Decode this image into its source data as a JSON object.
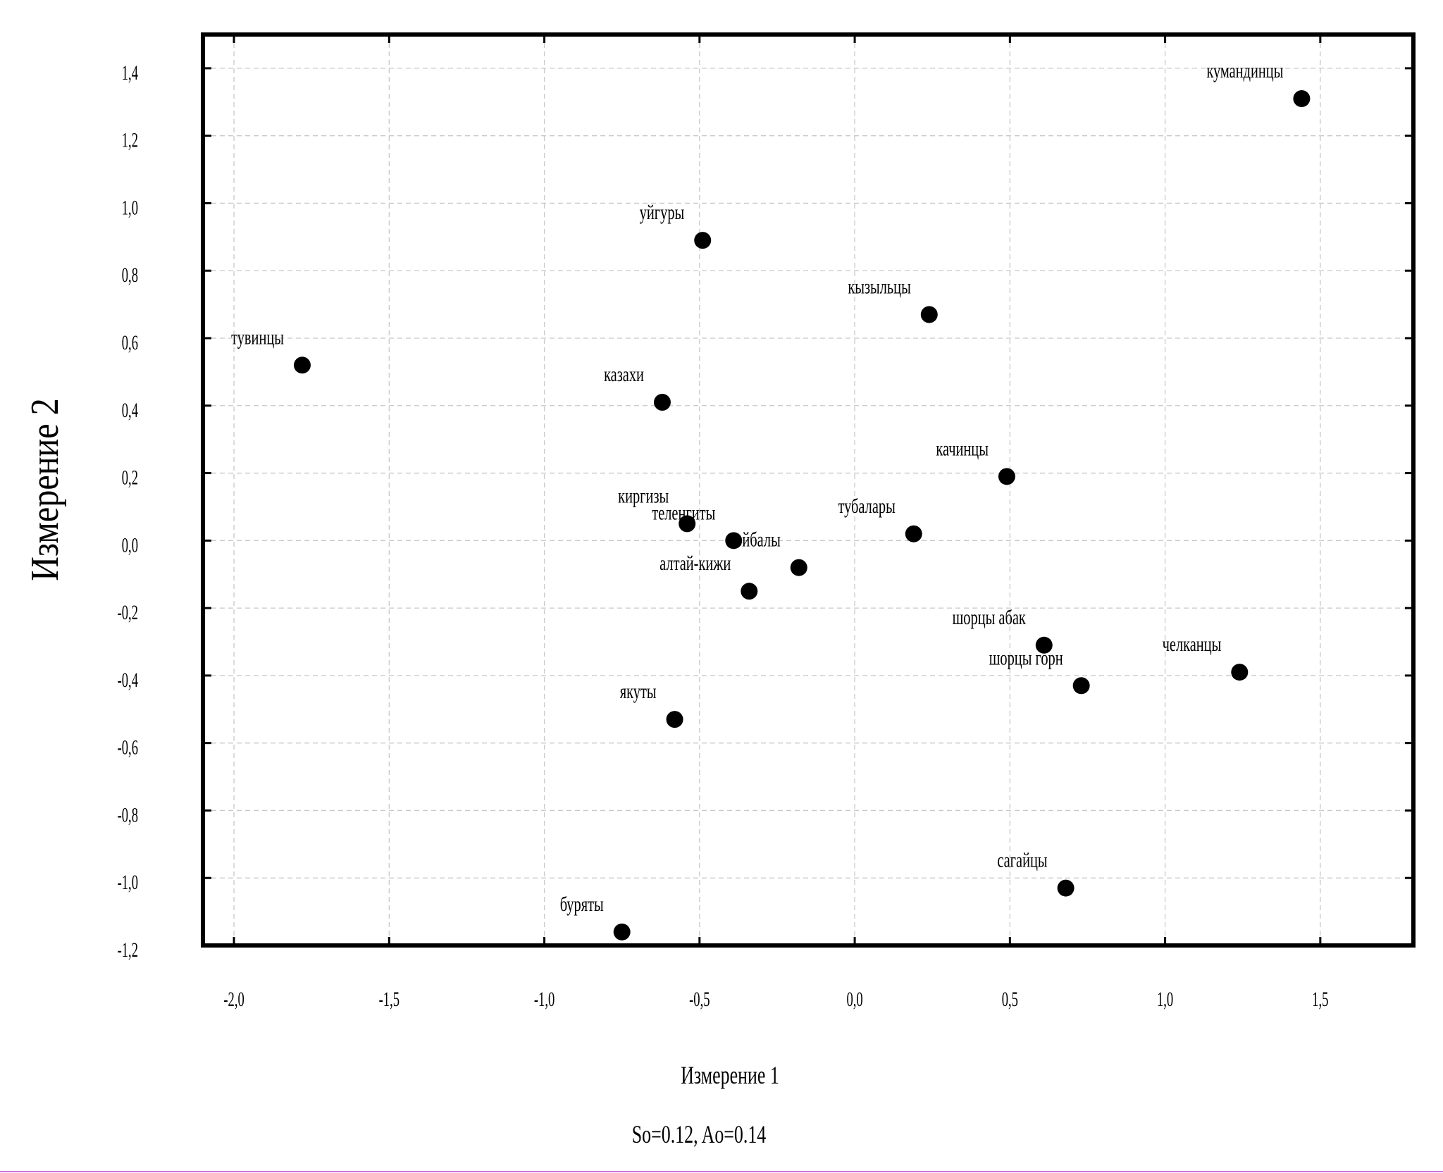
{
  "chart_data": {
    "type": "scatter",
    "title": "",
    "xlabel": "Измерение 1",
    "ylabel": "Измерение 2",
    "subtitle": "So=0.12, Ao=0.14",
    "xlim": [
      -2.1,
      1.8
    ],
    "ylim": [
      -1.2,
      1.5
    ],
    "xticks": [
      -2.0,
      -1.5,
      -1.0,
      -0.5,
      0.0,
      0.5,
      1.0,
      1.5
    ],
    "xtick_labels": [
      "-2,0",
      "-1,5",
      "-1,0",
      "-0,5",
      "0,0",
      "0,5",
      "1,0",
      "1,5"
    ],
    "yticks": [
      1.4,
      1.2,
      1.0,
      0.8,
      0.6,
      0.4,
      0.2,
      0.0,
      -0.2,
      -0.4,
      -0.6,
      -0.8,
      -1.0,
      -1.2
    ],
    "ytick_labels": [
      "1,4",
      "1,2",
      "1,0",
      "0,8",
      "0,6",
      "0,4",
      "0,2",
      "0,0",
      "-0,2",
      "-0,4",
      "-0,6",
      "-0,8",
      "-1,0",
      "-1,2"
    ],
    "grid": true,
    "legend": "none",
    "marker_color": "#000000",
    "points": [
      {
        "label": "кумандинцы",
        "x": 1.44,
        "y": 1.31
      },
      {
        "label": "уйгуры",
        "x": -0.49,
        "y": 0.89
      },
      {
        "label": "кызыльцы",
        "x": 0.24,
        "y": 0.67
      },
      {
        "label": "тувинцы",
        "x": -1.78,
        "y": 0.52
      },
      {
        "label": "казахи",
        "x": -0.62,
        "y": 0.41
      },
      {
        "label": "качинцы",
        "x": 0.49,
        "y": 0.19
      },
      {
        "label": "киргизы",
        "x": -0.54,
        "y": 0.05
      },
      {
        "label": "теленгиты",
        "x": -0.39,
        "y": 0.0
      },
      {
        "label": "тубалары",
        "x": 0.19,
        "y": 0.02
      },
      {
        "label": "койбалы",
        "x": -0.18,
        "y": -0.08
      },
      {
        "label": "алтай-кижи",
        "x": -0.34,
        "y": -0.15
      },
      {
        "label": "шорцы абак",
        "x": 0.61,
        "y": -0.31
      },
      {
        "label": "шорцы горн",
        "x": 0.73,
        "y": -0.43
      },
      {
        "label": "челканцы",
        "x": 1.24,
        "y": -0.39
      },
      {
        "label": "якуты",
        "x": -0.58,
        "y": -0.53
      },
      {
        "label": "сагайцы",
        "x": 0.68,
        "y": -1.03
      },
      {
        "label": "буряты",
        "x": -0.75,
        "y": -1.16
      }
    ]
  }
}
